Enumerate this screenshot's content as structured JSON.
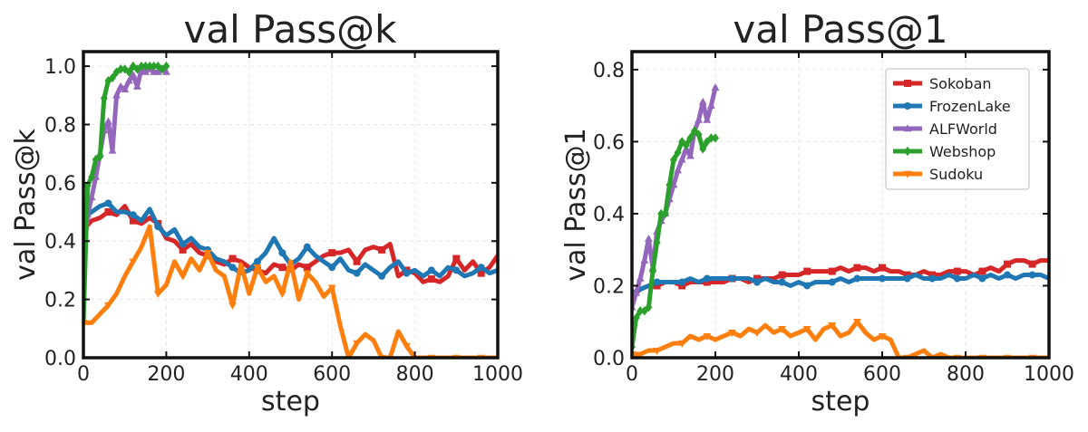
{
  "colors": {
    "Sokoban": "#d62728",
    "FrozenLake": "#1f77b4",
    "ALFWorld": "#9467bd",
    "Webshop": "#2ca02c",
    "Sudoku": "#ff7f0e"
  },
  "legend_entries": [
    "Sokoban",
    "FrozenLake",
    "ALFWorld",
    "Webshop",
    "Sudoku"
  ],
  "chart_data": [
    {
      "type": "line",
      "title": "val Pass@k",
      "xlabel": "step",
      "ylabel": "val Pass@k",
      "xlim": [
        0,
        1000
      ],
      "ylim": [
        0,
        1.05
      ],
      "xticks": [
        0,
        200,
        400,
        600,
        800,
        1000
      ],
      "xtick_labels": [
        "0",
        "200",
        "400",
        "600",
        "800",
        "1000"
      ],
      "yticks": [
        0,
        0.2,
        0.4,
        0.6,
        0.8,
        1.0
      ],
      "ytick_labels": [
        "0.0",
        "0.2",
        "0.4",
        "0.6",
        "0.8",
        "1.0"
      ],
      "grid": true,
      "legend": false,
      "series": [
        {
          "name": "Sokoban",
          "marker": "square",
          "x": [
            0,
            20,
            40,
            60,
            80,
            100,
            120,
            140,
            160,
            180,
            200,
            220,
            240,
            260,
            280,
            300,
            320,
            340,
            360,
            380,
            400,
            420,
            440,
            460,
            480,
            500,
            520,
            540,
            560,
            580,
            600,
            620,
            640,
            660,
            680,
            700,
            720,
            740,
            760,
            780,
            800,
            820,
            840,
            860,
            880,
            900,
            920,
            940,
            960,
            980,
            1000
          ],
          "y": [
            0.44,
            0.47,
            0.48,
            0.5,
            0.49,
            0.52,
            0.47,
            0.46,
            0.48,
            0.46,
            0.41,
            0.4,
            0.37,
            0.39,
            0.36,
            0.35,
            0.33,
            0.32,
            0.34,
            0.33,
            0.31,
            0.3,
            0.29,
            0.32,
            0.31,
            0.3,
            0.32,
            0.31,
            0.33,
            0.35,
            0.36,
            0.36,
            0.37,
            0.33,
            0.37,
            0.38,
            0.37,
            0.39,
            0.28,
            0.3,
            0.29,
            0.26,
            0.27,
            0.26,
            0.28,
            0.34,
            0.3,
            0.33,
            0.29,
            0.31,
            0.35
          ]
        },
        {
          "name": "FrozenLake",
          "marker": "circle",
          "x": [
            0,
            20,
            40,
            60,
            80,
            100,
            120,
            140,
            160,
            180,
            200,
            220,
            240,
            260,
            280,
            300,
            320,
            340,
            360,
            380,
            400,
            420,
            440,
            460,
            480,
            500,
            520,
            540,
            560,
            580,
            600,
            620,
            640,
            660,
            680,
            700,
            720,
            740,
            760,
            780,
            800,
            820,
            840,
            860,
            880,
            900,
            920,
            940,
            960,
            980,
            1000
          ],
          "y": [
            0.48,
            0.5,
            0.52,
            0.53,
            0.5,
            0.5,
            0.49,
            0.47,
            0.51,
            0.45,
            0.42,
            0.44,
            0.39,
            0.41,
            0.38,
            0.37,
            0.34,
            0.33,
            0.31,
            0.29,
            0.3,
            0.33,
            0.36,
            0.41,
            0.36,
            0.32,
            0.34,
            0.38,
            0.35,
            0.33,
            0.31,
            0.34,
            0.3,
            0.29,
            0.32,
            0.3,
            0.28,
            0.31,
            0.33,
            0.29,
            0.3,
            0.28,
            0.3,
            0.28,
            0.31,
            0.3,
            0.28,
            0.29,
            0.31,
            0.29,
            0.3
          ]
        },
        {
          "name": "ALFWorld",
          "marker": "triangle",
          "x": [
            0,
            10,
            20,
            30,
            40,
            50,
            60,
            70,
            80,
            90,
            100,
            110,
            120,
            130,
            140,
            150,
            160,
            170,
            180,
            190,
            200
          ],
          "y": [
            0.33,
            0.49,
            0.55,
            0.62,
            0.7,
            0.78,
            0.81,
            0.71,
            0.9,
            0.93,
            0.92,
            0.95,
            0.97,
            0.93,
            0.99,
            0.98,
            0.99,
            0.98,
            0.98,
            0.99,
            0.98
          ]
        },
        {
          "name": "Webshop",
          "marker": "diamond",
          "x": [
            0,
            10,
            20,
            30,
            40,
            50,
            60,
            70,
            80,
            90,
            100,
            110,
            120,
            130,
            140,
            150,
            160,
            170,
            180,
            190,
            200
          ],
          "y": [
            0.12,
            0.59,
            0.62,
            0.68,
            0.69,
            0.89,
            0.95,
            0.96,
            0.98,
            0.99,
            0.99,
            0.98,
            1.0,
            0.99,
            1.0,
            1.0,
            1.0,
            1.0,
            1.0,
            0.99,
            1.0
          ]
        },
        {
          "name": "Sudoku",
          "marker": "triangle-down",
          "x": [
            0,
            20,
            40,
            60,
            80,
            100,
            120,
            140,
            160,
            180,
            200,
            220,
            240,
            260,
            280,
            300,
            320,
            340,
            360,
            380,
            400,
            420,
            440,
            460,
            480,
            500,
            520,
            540,
            560,
            580,
            600,
            620,
            640,
            660,
            680,
            700,
            720,
            740,
            760,
            780,
            800,
            820,
            840,
            860,
            880,
            900,
            920,
            940,
            960,
            980,
            1000
          ],
          "y": [
            0.12,
            0.12,
            0.15,
            0.18,
            0.22,
            0.28,
            0.33,
            0.38,
            0.45,
            0.22,
            0.25,
            0.33,
            0.28,
            0.34,
            0.3,
            0.36,
            0.3,
            0.28,
            0.18,
            0.32,
            0.22,
            0.31,
            0.26,
            0.28,
            0.22,
            0.33,
            0.2,
            0.29,
            0.26,
            0.21,
            0.24,
            0.11,
            0.0,
            0.05,
            0.08,
            0.06,
            0.0,
            0.0,
            0.09,
            0.04,
            0.0,
            0.0,
            0.0,
            0.0,
            0.0,
            0.0,
            0.0,
            0.0,
            0.0,
            0.0,
            0.0
          ]
        }
      ]
    },
    {
      "type": "line",
      "title": "val Pass@1",
      "xlabel": "step",
      "ylabel": "val Pass@1",
      "xlim": [
        0,
        1000
      ],
      "ylim": [
        0,
        0.85
      ],
      "xticks": [
        0,
        200,
        400,
        600,
        800,
        1000
      ],
      "xtick_labels": [
        "0",
        "200",
        "400",
        "600",
        "800",
        "1000"
      ],
      "yticks": [
        0,
        0.2,
        0.4,
        0.6,
        0.8
      ],
      "ytick_labels": [
        "0.0",
        "0.2",
        "0.4",
        "0.6",
        "0.8"
      ],
      "grid": true,
      "legend": true,
      "legend_position": "top-right",
      "series": [
        {
          "name": "Sokoban",
          "marker": "square",
          "x": [
            0,
            20,
            40,
            60,
            80,
            100,
            120,
            140,
            160,
            180,
            200,
            220,
            240,
            260,
            280,
            300,
            320,
            340,
            360,
            380,
            400,
            420,
            440,
            460,
            480,
            500,
            520,
            540,
            560,
            580,
            600,
            620,
            640,
            660,
            680,
            700,
            720,
            740,
            760,
            780,
            800,
            820,
            840,
            860,
            880,
            900,
            920,
            940,
            960,
            980,
            1000
          ],
          "y": [
            0.17,
            0.19,
            0.2,
            0.2,
            0.21,
            0.21,
            0.2,
            0.21,
            0.21,
            0.21,
            0.21,
            0.21,
            0.22,
            0.22,
            0.21,
            0.22,
            0.22,
            0.22,
            0.23,
            0.23,
            0.23,
            0.24,
            0.24,
            0.24,
            0.24,
            0.25,
            0.24,
            0.25,
            0.25,
            0.24,
            0.25,
            0.24,
            0.24,
            0.23,
            0.23,
            0.24,
            0.23,
            0.23,
            0.24,
            0.24,
            0.24,
            0.23,
            0.24,
            0.25,
            0.24,
            0.26,
            0.27,
            0.27,
            0.26,
            0.27,
            0.27
          ]
        },
        {
          "name": "FrozenLake",
          "marker": "circle",
          "x": [
            0,
            20,
            40,
            60,
            80,
            100,
            120,
            140,
            160,
            180,
            200,
            220,
            240,
            260,
            280,
            300,
            320,
            340,
            360,
            380,
            400,
            420,
            440,
            460,
            480,
            500,
            520,
            540,
            560,
            580,
            600,
            620,
            640,
            660,
            680,
            700,
            720,
            740,
            760,
            780,
            800,
            820,
            840,
            860,
            880,
            900,
            920,
            940,
            960,
            980,
            1000
          ],
          "y": [
            0.18,
            0.19,
            0.2,
            0.21,
            0.21,
            0.21,
            0.21,
            0.22,
            0.21,
            0.22,
            0.22,
            0.22,
            0.22,
            0.22,
            0.22,
            0.21,
            0.22,
            0.21,
            0.21,
            0.2,
            0.21,
            0.2,
            0.21,
            0.21,
            0.21,
            0.22,
            0.21,
            0.22,
            0.22,
            0.22,
            0.22,
            0.22,
            0.22,
            0.22,
            0.23,
            0.22,
            0.22,
            0.22,
            0.23,
            0.22,
            0.22,
            0.23,
            0.22,
            0.23,
            0.22,
            0.23,
            0.22,
            0.23,
            0.23,
            0.23,
            0.22
          ]
        },
        {
          "name": "ALFWorld",
          "marker": "triangle",
          "x": [
            0,
            10,
            20,
            30,
            40,
            50,
            60,
            70,
            80,
            90,
            100,
            110,
            120,
            130,
            140,
            150,
            160,
            170,
            180,
            190,
            200
          ],
          "y": [
            0.14,
            0.18,
            0.22,
            0.27,
            0.33,
            0.25,
            0.35,
            0.38,
            0.4,
            0.44,
            0.48,
            0.52,
            0.55,
            0.58,
            0.56,
            0.63,
            0.66,
            0.71,
            0.66,
            0.7,
            0.75
          ]
        },
        {
          "name": "Webshop",
          "marker": "diamond",
          "x": [
            0,
            10,
            20,
            30,
            40,
            50,
            60,
            70,
            80,
            90,
            100,
            110,
            120,
            130,
            140,
            150,
            160,
            170,
            180,
            190,
            200
          ],
          "y": [
            0.03,
            0.11,
            0.13,
            0.13,
            0.14,
            0.24,
            0.32,
            0.4,
            0.4,
            0.48,
            0.55,
            0.57,
            0.6,
            0.59,
            0.61,
            0.63,
            0.62,
            0.58,
            0.6,
            0.61,
            0.61
          ]
        },
        {
          "name": "Sudoku",
          "marker": "triangle-down",
          "x": [
            0,
            20,
            40,
            60,
            80,
            100,
            120,
            140,
            160,
            180,
            200,
            220,
            240,
            260,
            280,
            300,
            320,
            340,
            360,
            380,
            400,
            420,
            440,
            460,
            480,
            500,
            520,
            540,
            560,
            580,
            600,
            620,
            640,
            660,
            680,
            700,
            720,
            740,
            760,
            780,
            800,
            820,
            840,
            860,
            880,
            900,
            920,
            940,
            960,
            980,
            1000
          ],
          "y": [
            0.01,
            0.01,
            0.02,
            0.02,
            0.03,
            0.04,
            0.04,
            0.06,
            0.05,
            0.06,
            0.05,
            0.06,
            0.07,
            0.06,
            0.08,
            0.07,
            0.09,
            0.07,
            0.08,
            0.06,
            0.07,
            0.08,
            0.05,
            0.08,
            0.09,
            0.06,
            0.07,
            0.1,
            0.07,
            0.05,
            0.06,
            0.05,
            0.0,
            0.0,
            0.01,
            0.02,
            0.0,
            0.01,
            0.0,
            0.0,
            0.0,
            0.0,
            0.0,
            0.0,
            0.0,
            0.0,
            0.0,
            0.0,
            0.0,
            0.0,
            0.0
          ]
        }
      ]
    }
  ]
}
